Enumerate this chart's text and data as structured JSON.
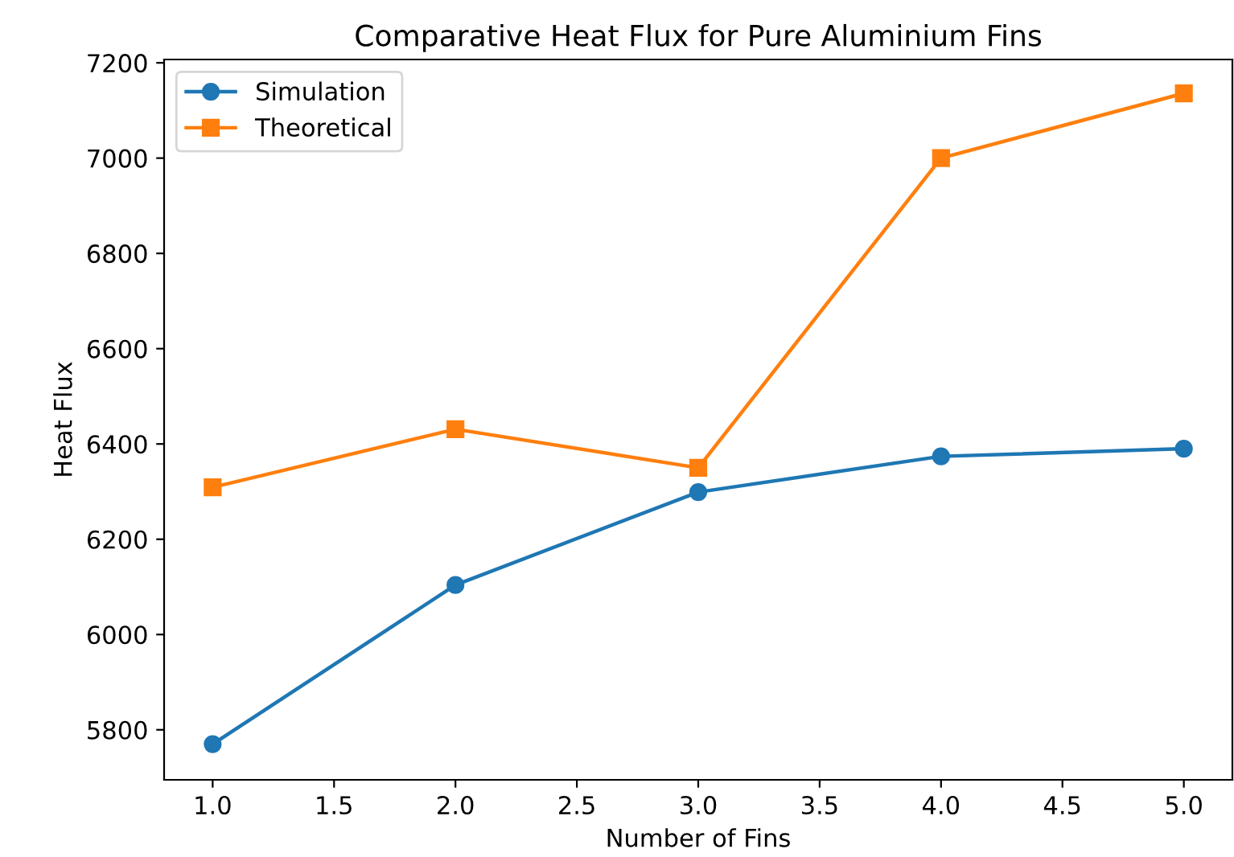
{
  "chart_data": {
    "type": "line",
    "title": "Comparative Heat Flux for Pure Aluminium Fins",
    "xlabel": "Number of Fins",
    "ylabel": "Heat Flux",
    "x": [
      1,
      2,
      3,
      4,
      5
    ],
    "series": [
      {
        "name": "Simulation",
        "color": "#1f77b4",
        "marker": "circle",
        "values": [
          5770,
          6104,
          6299,
          6374,
          6390
        ]
      },
      {
        "name": "Theoretical",
        "color": "#ff7f0e",
        "marker": "square",
        "values": [
          6309,
          6431,
          6350,
          7000,
          7136
        ]
      }
    ],
    "xlim": [
      0.8,
      5.2
    ],
    "xticks": [
      {
        "value": 1,
        "label": "1.0"
      },
      {
        "value": 1.5,
        "label": "1.5"
      },
      {
        "value": 2,
        "label": "2.0"
      },
      {
        "value": 2.5,
        "label": "2.5"
      },
      {
        "value": 3,
        "label": "3.0"
      },
      {
        "value": 3.5,
        "label": "3.5"
      },
      {
        "value": 4,
        "label": "4.0"
      },
      {
        "value": 4.5,
        "label": "4.5"
      },
      {
        "value": 5,
        "label": "5.0"
      }
    ],
    "ylim": [
      5695,
      7207
    ],
    "yticks": [
      5800,
      6000,
      6200,
      6400,
      6600,
      6800,
      7000,
      7200
    ],
    "grid": false,
    "legend": "top left",
    "line_style": "solid"
  }
}
